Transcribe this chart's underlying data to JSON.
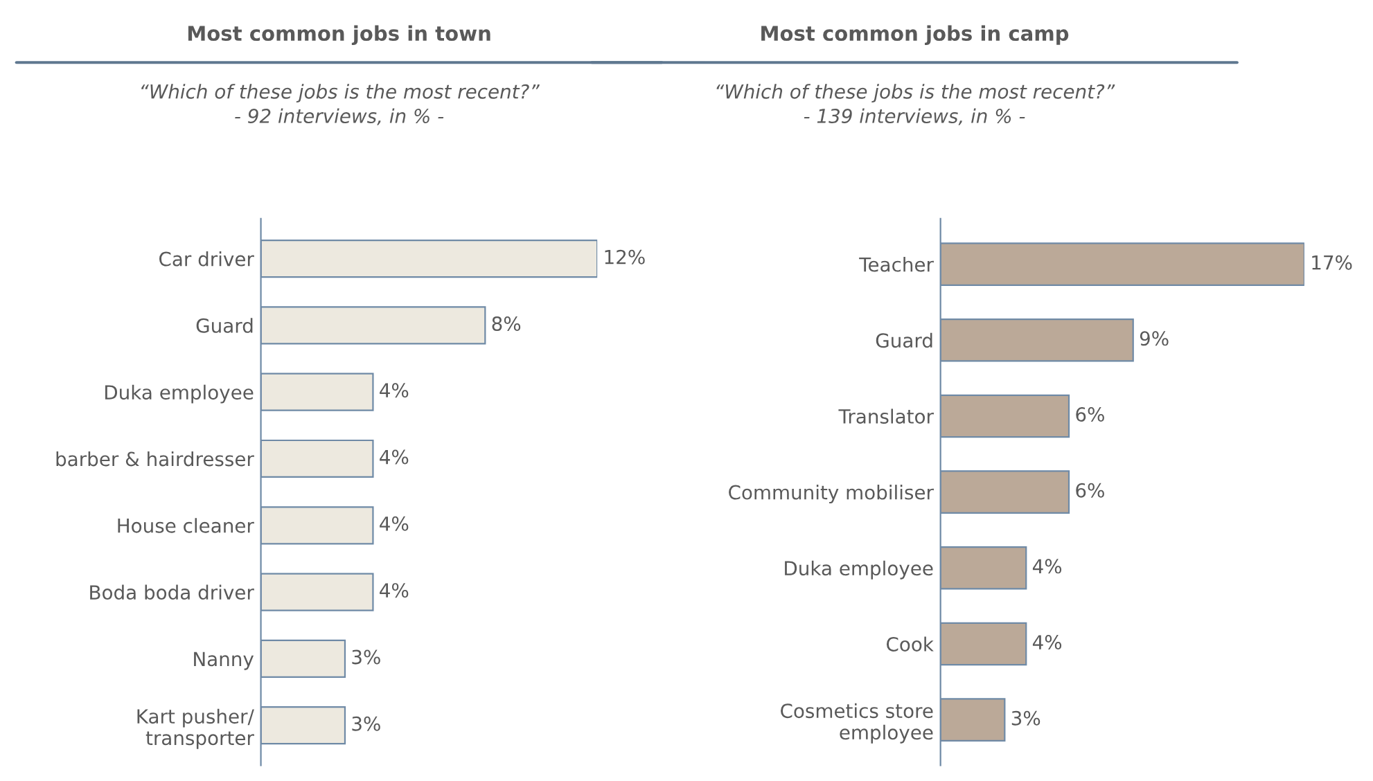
{
  "chart_data": [
    {
      "type": "bar",
      "orientation": "horizontal",
      "title": "Most common jobs in town",
      "subtitle": "“Which of these jobs is the most recent?”\n- 92 interviews, in % -",
      "categories": [
        "Car driver",
        "Guard",
        "Duka employee",
        "barber & hairdresser",
        "House cleaner",
        "Boda boda driver",
        "Nanny",
        "Kart pusher/\ntransporter"
      ],
      "values": [
        12,
        8,
        4,
        4,
        4,
        4,
        3,
        3
      ],
      "color": "#ede9df",
      "value_labels": [
        "12%",
        "8%",
        "4%",
        "4%",
        "4%",
        "4%",
        "3%",
        "3%"
      ],
      "grid": false,
      "legend": false,
      "tick_labels": "y"
    },
    {
      "type": "bar",
      "orientation": "horizontal",
      "title": "Most common jobs in camp",
      "subtitle": "“Which of these jobs is the most recent?”\n- 139 interviews, in % -",
      "categories": [
        "Teacher",
        "Guard",
        "Translator",
        "Community mobiliser",
        "Duka employee",
        "Cook",
        "Cosmetics store\nemployee"
      ],
      "values": [
        17,
        9,
        6,
        6,
        4,
        4,
        3
      ],
      "color": "#bba998",
      "value_labels": [
        "17%",
        "9%",
        "6%",
        "6%",
        "4%",
        "4%",
        "3%"
      ],
      "grid": false,
      "legend": false,
      "tick_labels": "y"
    }
  ]
}
